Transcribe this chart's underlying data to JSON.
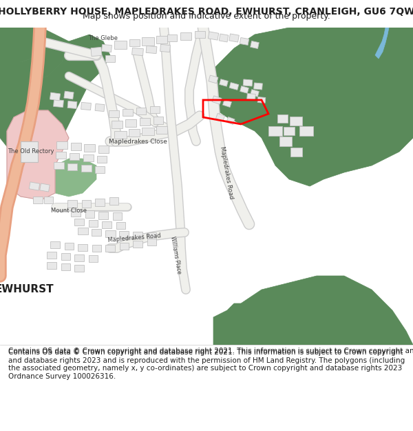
{
  "title_line1": "HOLLYBERRY HOUSE, MAPLEDRAKES ROAD, EWHURST, CRANLEIGH, GU6 7QW",
  "title_line2": "Map shows position and indicative extent of the property.",
  "footer": "Contains OS data © Crown copyright and database right 2021. This information is subject to Crown copyright and database rights 2023 and is reproduced with the permission of HM Land Registry. The polygons (including the associated geometry, namely x, y co-ordinates) are subject to Crown copyright and database rights 2023 Ordnance Survey 100026316.",
  "bg_color": "#f5f5f0",
  "map_bg": "#ffffff",
  "green_color": "#5a8a5a",
  "light_green": "#8ab88a",
  "pink_color": "#f0c8c8",
  "light_pink": "#f5d8d0",
  "road_color": "#ffffff",
  "building_color": "#e8e8e8",
  "building_outline": "#c0c0c0",
  "red_polygon": "#ff0000",
  "blue_water": "#7ab8d8",
  "text_color": "#202020",
  "road_label_color": "#404040",
  "title_fontsize": 10,
  "subtitle_fontsize": 9,
  "footer_fontsize": 7.5
}
